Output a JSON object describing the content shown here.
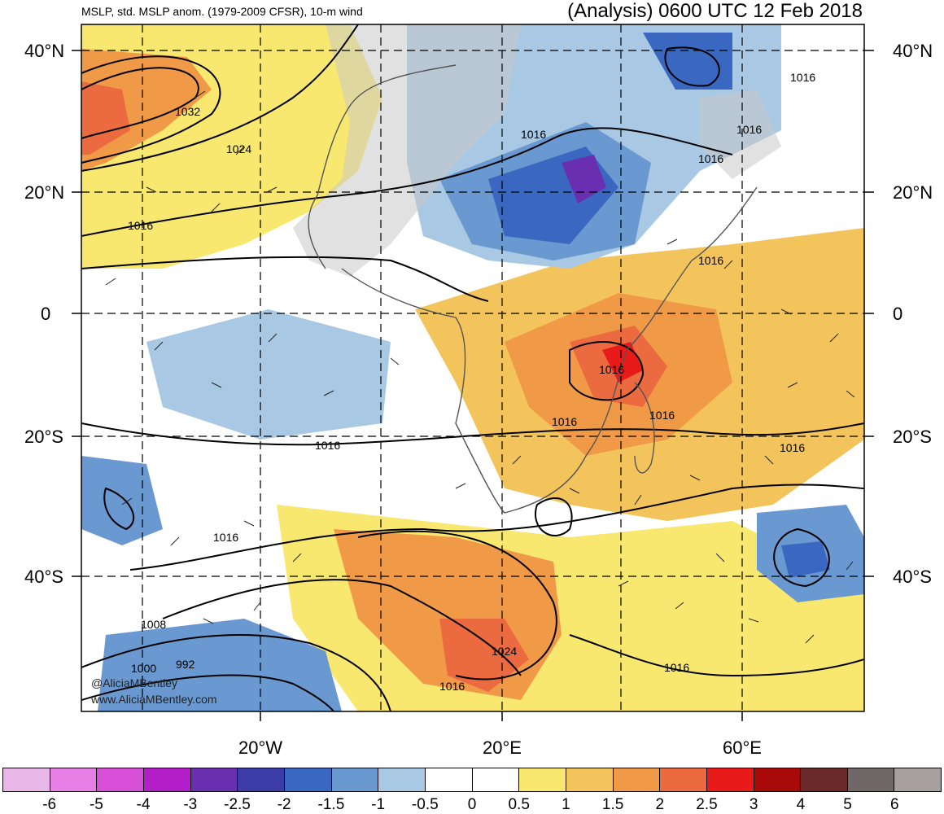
{
  "header": {
    "left_title": "MSLP, std. MSLP anom. (1979-2009 CFSR), 10-m wind",
    "right_title": "(Analysis) 0600 UTC 12 Feb 2018"
  },
  "axes": {
    "lat_labels": [
      "40°N",
      "20°N",
      "0",
      "20°S",
      "40°S"
    ],
    "lon_labels": [
      "20°W",
      "20°E",
      "60°E"
    ]
  },
  "contour_labels": [
    "1032",
    "1024",
    "1016",
    "1016",
    "1016",
    "1016",
    "1016",
    "1016",
    "1016",
    "1016",
    "1016",
    "1016",
    "1016",
    "1016",
    "1008",
    "1000",
    "992",
    "1024",
    "1016",
    "1016"
  ],
  "credits": {
    "handle": "@AliciaMBentley",
    "site": "www.AliciaMBentley.com"
  },
  "colorbar": {
    "labels": [
      "-6",
      "-5",
      "-4",
      "-3",
      "-2.5",
      "-2",
      "-1.5",
      "-1",
      "-0.5",
      "0",
      "0.5",
      "1",
      "1.5",
      "2",
      "2.5",
      "3",
      "4",
      "5",
      "6"
    ],
    "colors": [
      "#eab8e8",
      "#e680e6",
      "#d850d8",
      "#b41ec8",
      "#6a2fb0",
      "#3c3ca8",
      "#3a68c0",
      "#6a98d0",
      "#a8c8e4",
      "#ffffff",
      "#ffffff",
      "#f8e870",
      "#f4c45c",
      "#f09a48",
      "#ec6a40",
      "#e81a1a",
      "#a80a0a",
      "#6a2a2a",
      "#706868",
      "#a8a0a0"
    ]
  },
  "legend_units": "std. MSLP anomaly"
}
